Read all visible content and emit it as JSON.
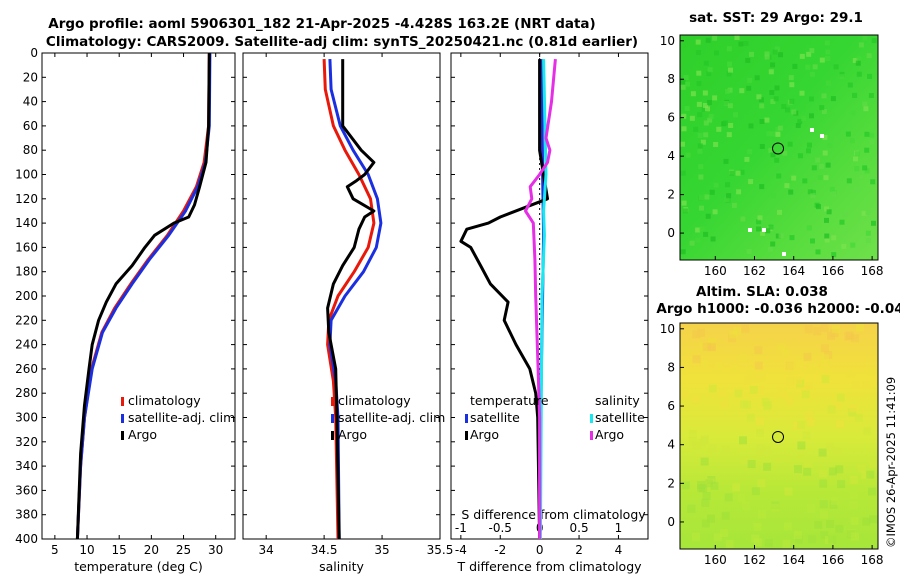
{
  "title": {
    "line1": "Argo profile: aoml 5906301_182 21-Apr-2025 -4.428S 163.2E (NRT data)",
    "line2": "Climatology: CARS2009. Satellite-adj clim: synTS_20250421.nc (0.81d earlier)"
  },
  "footer": "©IMOS 26-Apr-2025 11:41:09",
  "colors": {
    "clim": "#e8190a",
    "sat": "#1a2fe0",
    "argo": "#000000",
    "sal_sat": "#19e8f0",
    "sal_argo": "#e62ee6"
  },
  "chart_data": [
    {
      "type": "line",
      "name": "temperature-profile",
      "xlabel": "temperature (deg C)",
      "xlim": [
        3,
        33
      ],
      "ylim": [
        0,
        400
      ],
      "xticks": [
        "5",
        "10",
        "15",
        "20",
        "25",
        "30"
      ],
      "yticks": [
        "0",
        "20",
        "40",
        "60",
        "80",
        "100",
        "120",
        "140",
        "160",
        "180",
        "200",
        "220",
        "240",
        "260",
        "280",
        "300",
        "320",
        "340",
        "360",
        "380",
        "400"
      ],
      "legend": [
        "climatology",
        "satellite-adj. clim",
        "Argo"
      ],
      "series": [
        {
          "name": "climatology",
          "depth": [
            0,
            60,
            90,
            110,
            130,
            150,
            170,
            190,
            210,
            230,
            260,
            300,
            340,
            400
          ],
          "values": [
            29.0,
            28.9,
            28.2,
            27.0,
            25.0,
            22.5,
            19.5,
            16.8,
            14.3,
            12.3,
            10.7,
            9.6,
            9.0,
            8.5
          ]
        },
        {
          "name": "satellite-adj. clim",
          "depth": [
            0,
            60,
            90,
            110,
            130,
            150,
            170,
            190,
            210,
            230,
            260,
            300,
            340,
            400
          ],
          "values": [
            29.1,
            29.0,
            28.4,
            27.2,
            25.3,
            22.7,
            19.7,
            17.0,
            14.5,
            12.4,
            10.8,
            9.6,
            9.0,
            8.5
          ]
        },
        {
          "name": "Argo",
          "depth": [
            0,
            60,
            90,
            110,
            125,
            135,
            140,
            150,
            160,
            175,
            190,
            205,
            220,
            240,
            260,
            290,
            330,
            400
          ],
          "values": [
            29.0,
            28.9,
            28.5,
            27.5,
            26.7,
            25.8,
            23.5,
            20.5,
            19.0,
            17.0,
            14.5,
            13.0,
            11.8,
            10.8,
            10.3,
            9.6,
            9.0,
            8.5
          ]
        }
      ]
    },
    {
      "type": "line",
      "name": "salinity-profile",
      "xlabel": "salinity",
      "xlim": [
        33.8,
        35.5
      ],
      "ylim": [
        0,
        400
      ],
      "xticks": [
        "34",
        "34.5",
        "35",
        "35.5"
      ],
      "legend": [
        "climatology",
        "satellite-adj. clim",
        "Argo"
      ],
      "series": [
        {
          "name": "climatology",
          "depth": [
            5,
            30,
            60,
            80,
            100,
            120,
            140,
            160,
            180,
            200,
            220,
            240,
            270,
            300,
            400
          ],
          "values": [
            34.5,
            34.51,
            34.58,
            34.68,
            34.8,
            34.9,
            34.93,
            34.88,
            34.76,
            34.62,
            34.54,
            34.53,
            34.58,
            34.6,
            34.62
          ]
        },
        {
          "name": "satellite-adj. clim",
          "depth": [
            5,
            30,
            60,
            80,
            100,
            120,
            140,
            160,
            180,
            200,
            220,
            240,
            270,
            300,
            400
          ],
          "values": [
            34.55,
            34.56,
            34.64,
            34.75,
            34.88,
            34.96,
            34.99,
            34.95,
            34.84,
            34.68,
            34.56,
            34.55,
            34.6,
            34.62,
            34.63
          ]
        },
        {
          "name": "Argo",
          "depth": [
            5,
            60,
            80,
            90,
            100,
            105,
            110,
            120,
            130,
            135,
            145,
            160,
            175,
            190,
            210,
            230,
            260,
            300,
            400
          ],
          "values": [
            34.66,
            34.66,
            34.82,
            34.93,
            34.85,
            34.78,
            34.7,
            34.75,
            34.93,
            34.85,
            34.8,
            34.76,
            34.66,
            34.58,
            34.53,
            34.54,
            34.6,
            34.61,
            34.63
          ]
        }
      ]
    },
    {
      "type": "line",
      "name": "difference-profile",
      "xlabel": "T difference from climatology",
      "x2label": "S difference from climatology",
      "xlim": [
        -4.5,
        5.5
      ],
      "x2lim": [
        -1.125,
        1.375
      ],
      "ylim": [
        0,
        400
      ],
      "xticks": [
        "-4",
        "-2",
        "0",
        "2",
        "4"
      ],
      "x2ticks": [
        "-1",
        "-0.5",
        "0",
        "0.5",
        "1"
      ],
      "legend_temperature_title": "temperature",
      "legend_salinity_title": "salinity",
      "legend_temperature": [
        "satellite",
        "Argo"
      ],
      "legend_salinity": [
        "satellite",
        "Argo"
      ],
      "series": [
        {
          "name": "T satellite",
          "axis": "T",
          "depth": [
            5,
            100,
            150,
            200,
            300,
            400
          ],
          "values": [
            0.1,
            0.15,
            0.2,
            0.15,
            0.05,
            0.0
          ]
        },
        {
          "name": "T Argo",
          "axis": "T",
          "depth": [
            5,
            80,
            120,
            135,
            140,
            145,
            155,
            160,
            175,
            190,
            205,
            220,
            240,
            260,
            280,
            300,
            400
          ],
          "values": [
            0.0,
            0.0,
            0.4,
            -2.0,
            -2.6,
            -3.7,
            -4.0,
            -3.5,
            -3.0,
            -2.5,
            -1.6,
            -1.8,
            -1.2,
            -0.5,
            -0.2,
            -0.1,
            0.0
          ]
        },
        {
          "name": "S satellite",
          "axis": "S",
          "depth": [
            5,
            100,
            130,
            150,
            200,
            300,
            400
          ],
          "values": [
            0.05,
            0.08,
            0.05,
            0.06,
            0.03,
            0.02,
            0.01
          ]
        },
        {
          "name": "S Argo",
          "axis": "S",
          "depth": [
            5,
            40,
            70,
            80,
            90,
            100,
            110,
            120,
            130,
            140,
            170,
            200,
            260,
            300,
            400
          ],
          "values": [
            0.2,
            0.15,
            0.08,
            0.13,
            0.1,
            0.0,
            -0.12,
            -0.1,
            -0.18,
            -0.08,
            -0.06,
            -0.05,
            -0.02,
            0.0,
            0.0
          ]
        }
      ]
    },
    {
      "type": "heatmap",
      "name": "sst-map",
      "title": "sat. SST: 29 Argo: 29.1",
      "xticks": [
        "160",
        "162",
        "164",
        "166",
        "168"
      ],
      "yticks": [
        "0",
        "2",
        "4",
        "6",
        "8",
        "10"
      ],
      "xlim": [
        158.2,
        168.3
      ],
      "ylim": [
        -1.4,
        10.3
      ],
      "marker": [
        163.2,
        4.4
      ]
    },
    {
      "type": "heatmap",
      "name": "sla-map",
      "title_line1": "Altim. SLA: 0.038",
      "title_line2": "Argo h1000: -0.036 h2000: -0.04",
      "xticks": [
        "160",
        "162",
        "164",
        "166",
        "168"
      ],
      "yticks": [
        "0",
        "2",
        "4",
        "6",
        "8",
        "10"
      ],
      "xlim": [
        158.2,
        168.3
      ],
      "ylim": [
        -1.4,
        10.3
      ],
      "marker": [
        163.2,
        4.4
      ]
    }
  ]
}
